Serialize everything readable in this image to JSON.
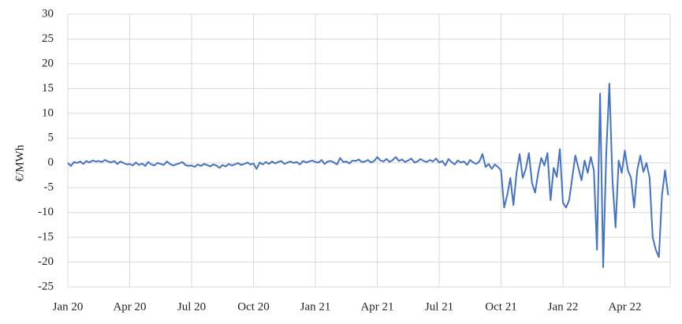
{
  "chart_data": {
    "type": "line",
    "y_label": "€/MWh",
    "color": "#4472c4",
    "grid": true,
    "ylim": [
      -25,
      30
    ],
    "yticks": [
      -25,
      -20,
      -15,
      -10,
      -5,
      0,
      5,
      10,
      15,
      20,
      25,
      30
    ],
    "categories": [
      "Jan 20",
      null,
      null,
      null,
      null,
      null,
      null,
      null,
      null,
      null,
      null,
      null,
      null,
      null,
      null,
      null,
      null,
      null,
      null,
      null,
      "Apr 20",
      null,
      null,
      null,
      null,
      null,
      null,
      null,
      null,
      null,
      null,
      null,
      null,
      null,
      null,
      null,
      null,
      null,
      null,
      null,
      "Jul 20",
      null,
      null,
      null,
      null,
      null,
      null,
      null,
      null,
      null,
      null,
      null,
      null,
      null,
      null,
      null,
      null,
      null,
      null,
      null,
      "Oct 20",
      null,
      null,
      null,
      null,
      null,
      null,
      null,
      null,
      null,
      null,
      null,
      null,
      null,
      null,
      null,
      null,
      null,
      null,
      null,
      "Jan 21",
      null,
      null,
      null,
      null,
      null,
      null,
      null,
      null,
      null,
      null,
      null,
      null,
      null,
      null,
      null,
      null,
      null,
      null,
      null,
      "Apr 21",
      null,
      null,
      null,
      null,
      null,
      null,
      null,
      null,
      null,
      null,
      null,
      null,
      null,
      null,
      null,
      null,
      null,
      null,
      null,
      "Jul 21",
      null,
      null,
      null,
      null,
      null,
      null,
      null,
      null,
      null,
      null,
      null,
      null,
      null,
      null,
      null,
      null,
      null,
      null,
      null,
      "Oct 21",
      null,
      null,
      null,
      null,
      null,
      null,
      null,
      null,
      null,
      null,
      null,
      null,
      null,
      null,
      null,
      null,
      null,
      null,
      null,
      "Jan 22",
      null,
      null,
      null,
      null,
      null,
      null,
      null,
      null,
      null,
      null,
      null,
      null,
      null,
      null,
      null,
      null,
      null,
      null,
      null,
      "Apr 22",
      null,
      null,
      null,
      null,
      null,
      null,
      null,
      null,
      null,
      null,
      null,
      null,
      null,
      null
    ],
    "values": [
      0,
      -0.6,
      0.2,
      0,
      0.3,
      -0.2,
      0.4,
      0.1,
      0.5,
      0.3,
      0.4,
      0.2,
      0.6,
      0.3,
      0.1,
      0.4,
      -0.2,
      0.3,
      0,
      -0.3,
      -0.2,
      -0.5,
      0.1,
      -0.4,
      -0.1,
      -0.6,
      0.2,
      -0.3,
      -0.5,
      0,
      -0.2,
      -0.4,
      0.3,
      -0.2,
      -0.5,
      -0.3,
      -0.1,
      0.2,
      -0.4,
      -0.6,
      -0.5,
      -0.8,
      -0.3,
      -0.6,
      -0.2,
      -0.4,
      -0.7,
      -0.3,
      -0.5,
      -1,
      -0.4,
      -0.7,
      -0.2,
      -0.5,
      -0.3,
      0,
      -0.4,
      -0.2,
      0.1,
      -0.3,
      -0.1,
      -1.2,
      0.1,
      -0.3,
      0.2,
      -0.2,
      0.3,
      -0.1,
      0.2,
      0.4,
      -0.2,
      0.1,
      0.3,
      0,
      0.2,
      -0.3,
      0.4,
      0.1,
      0.3,
      0.5,
      0.2,
      0.1,
      0.6,
      -0.2,
      0.3,
      0.4,
      0.1,
      -0.3,
      1,
      0.2,
      0.3,
      -0.1,
      0.5,
      0.4,
      0.7,
      0.2,
      0.3,
      0.6,
      0.1,
      0.4,
      1.2,
      0.5,
      0.3,
      0.8,
      0.2,
      0.6,
      1.2,
      0.4,
      0.7,
      0.2,
      0.5,
      0.9,
      0.1,
      0.3,
      0.8,
      0.4,
      0.2,
      0.6,
      0.3,
      0.9,
      0.1,
      0.4,
      -0.5,
      0.8,
      0.2,
      -0.3,
      0.5,
      0.1,
      0.3,
      -0.4,
      0.6,
      0.1,
      -0.2,
      0.3,
      1.8,
      -0.8,
      -0.2,
      -1.2,
      -0.3,
      -0.8,
      -1.5,
      -9,
      -6.5,
      -3,
      -8.5,
      -2,
      1.8,
      -3,
      -1.2,
      2,
      -4,
      -6,
      -2,
      1,
      -0.5,
      2,
      -7.5,
      -1,
      -2.8,
      2.8,
      -8,
      -9,
      -7.5,
      -3,
      1.5,
      -1,
      -3.5,
      0.5,
      -2,
      1.2,
      -1.5,
      -17.5,
      14,
      -21,
      2,
      16,
      -3.5,
      -13,
      0.5,
      -2,
      2.5,
      -1.5,
      -3,
      -9,
      -1.5,
      1.5,
      -1.8,
      0,
      -3,
      -15,
      -17.5,
      -19,
      -6.5,
      -1.5,
      -6.5
    ]
  }
}
